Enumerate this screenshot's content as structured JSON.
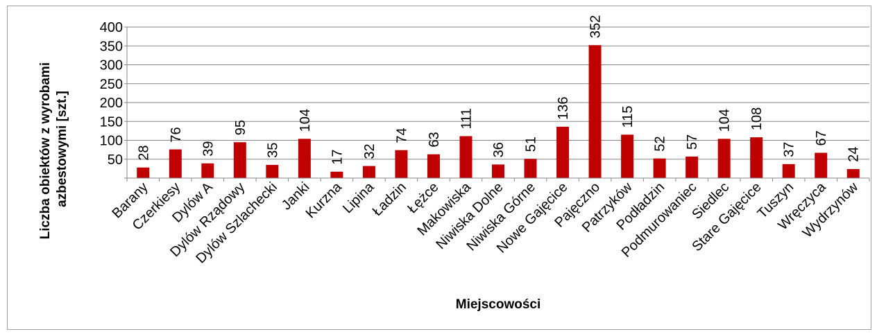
{
  "chart_data": {
    "type": "bar",
    "title": "",
    "xlabel": "Miejscowości",
    "ylabel": "Liczba obiektów z wyrobami azbestowymi [szt.]",
    "ylabel_lines": [
      "Liczba obiektów z wyrobami",
      "azbestowymi [szt.]"
    ],
    "ylim": [
      0,
      400
    ],
    "yticks": [
      50,
      100,
      150,
      200,
      250,
      300,
      350,
      400
    ],
    "grid": true,
    "bar_color": "#C00000",
    "categories": [
      "Barany",
      "Czerkiesy",
      "Dylów A",
      "Dylów Rządowy",
      "Dylów Szlachecki",
      "Janki",
      "Kurzna",
      "Lipina",
      "Ładzin",
      "Łężce",
      "Makowiska",
      "Niwiska Dolne",
      "Niwiska Górne",
      "Nowe Gajęcice",
      "Pajęczno",
      "Patrzyków",
      "Podładzin",
      "Podmurowaniec",
      "Siedlec",
      "Stare Gajęcice",
      "Tuszyn",
      "Wręczyca",
      "Wydrzynów"
    ],
    "values": [
      28,
      76,
      39,
      95,
      35,
      104,
      17,
      32,
      74,
      63,
      111,
      36,
      51,
      136,
      352,
      115,
      52,
      57,
      104,
      108,
      37,
      67,
      24
    ]
  }
}
